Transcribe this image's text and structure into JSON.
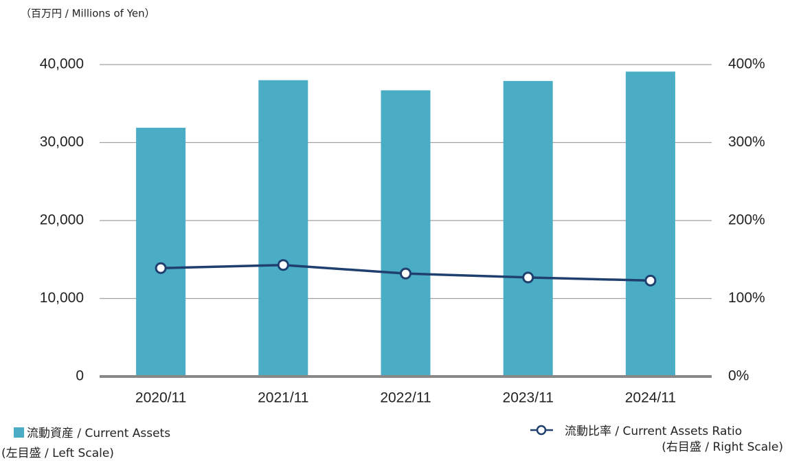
{
  "chart_data": {
    "type": "bar_line",
    "unit_label": "（百万円 / Millions of Yen）",
    "categories": [
      "2020/11",
      "2021/11",
      "2022/11",
      "2023/11",
      "2024/11"
    ],
    "series": [
      {
        "name": "流動資産 / Current Assets",
        "note": "(左目盛 / Left Scale)",
        "type": "bar",
        "color": "#4bacc6",
        "values": [
          31900,
          38000,
          36700,
          37900,
          39100
        ]
      },
      {
        "name": "流動比率 / Current Assets Ratio",
        "note": "(右目盛 / Right Scale)",
        "type": "line",
        "axis": "y2",
        "color": "#1f3f6e",
        "values": [
          139,
          143,
          132,
          127,
          123
        ]
      }
    ],
    "ylim": [
      0,
      40000
    ],
    "yticks": [
      0,
      {
        "value": 10000,
        "label": "10,000"
      },
      {
        "value": 20000,
        "label": "20,000"
      },
      {
        "value": 30000,
        "label": "30,000"
      },
      {
        "value": 40000,
        "label": "40,000"
      }
    ],
    "y2lim": [
      0,
      400
    ],
    "y2ticks": [
      {
        "value": 0,
        "label": "0%"
      },
      {
        "value": 100,
        "label": "100%"
      },
      {
        "value": 200,
        "label": "200%"
      },
      {
        "value": 300,
        "label": "300%"
      },
      {
        "value": 400,
        "label": "400%"
      }
    ],
    "grid": true
  }
}
